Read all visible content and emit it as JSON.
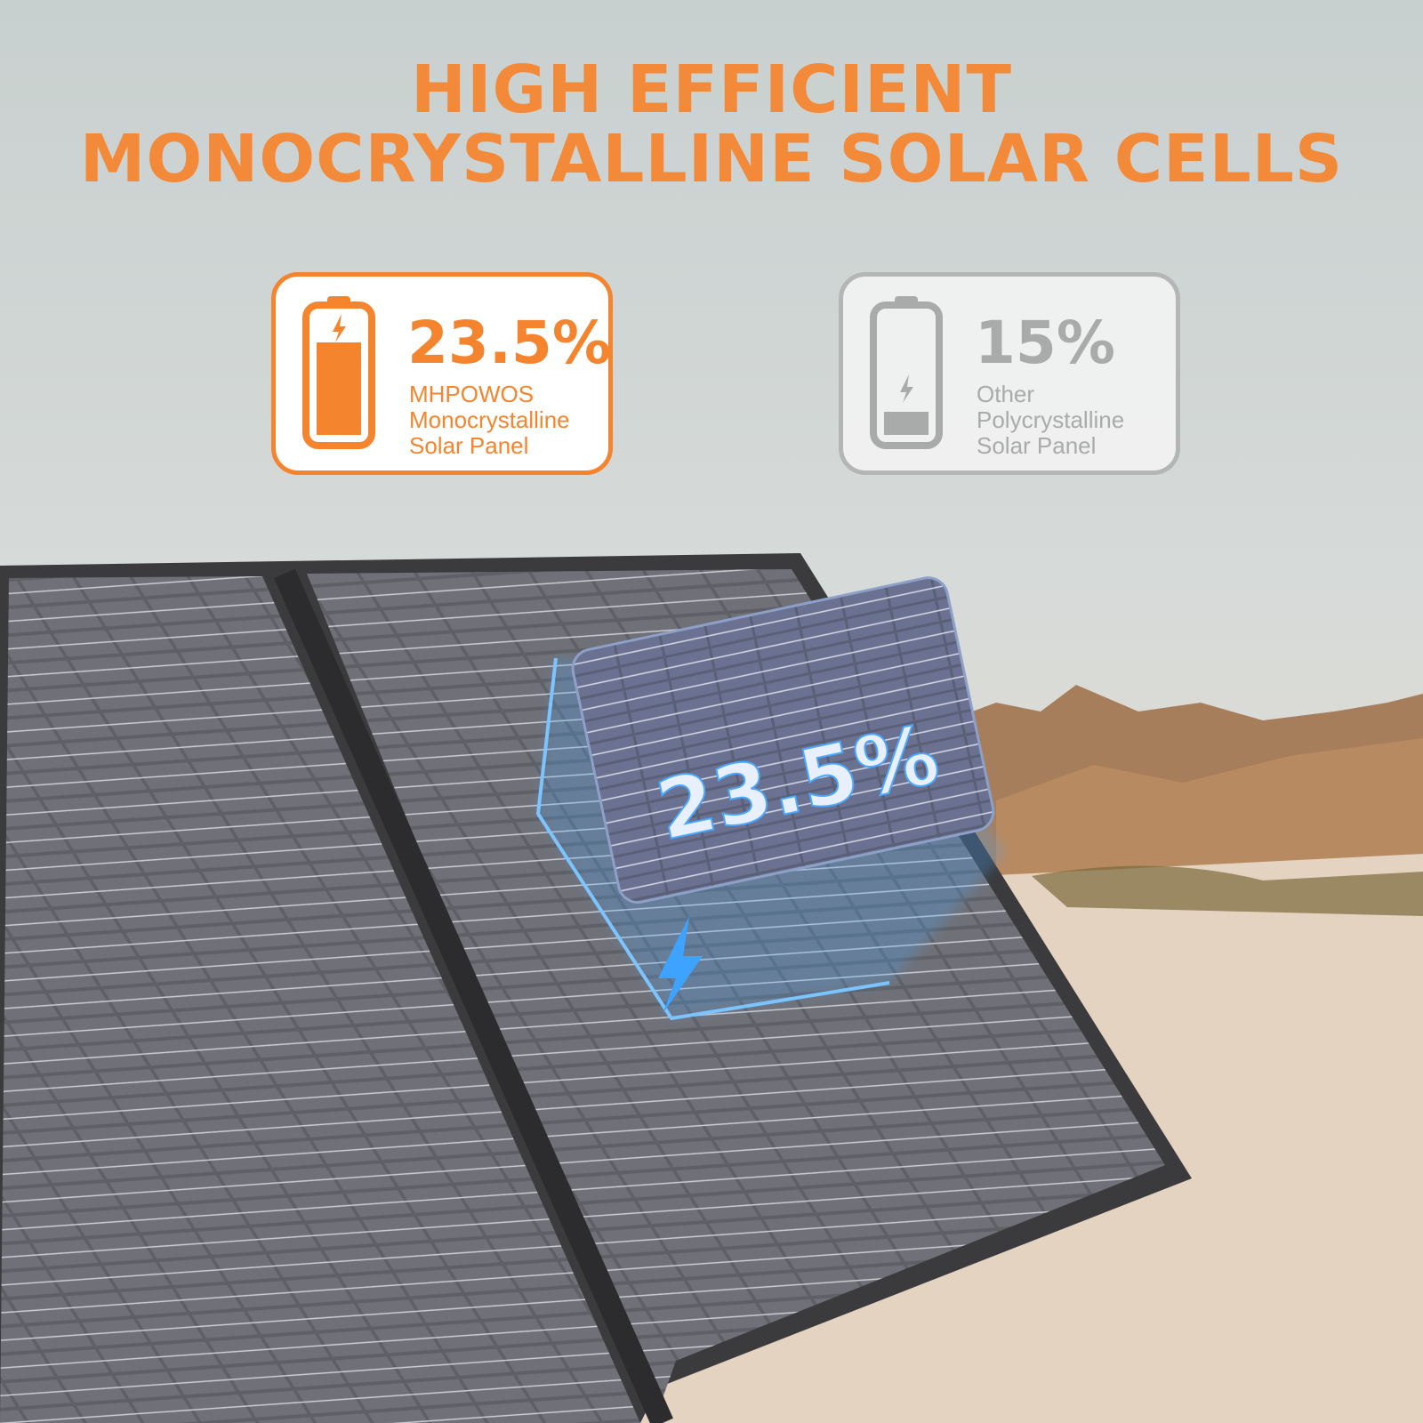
{
  "headline": {
    "line1": "HIGH EFFICIENT",
    "line2": "MONOCRYSTALLINE SOLAR CELLS"
  },
  "comparison": [
    {
      "value": "23.5%",
      "brand": "MHPOWOS",
      "type": "Monocrystalline",
      "product": "Solar Panel",
      "battery_fill_percent": 75,
      "color": "#f5842f",
      "icon": "battery-charging-icon"
    },
    {
      "value": "15%",
      "brand": "Other",
      "type": "Polycrystalline",
      "product": "Solar Panel",
      "battery_fill_percent": 20,
      "color": "#a9abab",
      "icon": "battery-low-icon"
    }
  ],
  "floating_cell": {
    "label": "23.5%",
    "icon": "lightning-bolt-icon"
  },
  "colors": {
    "accent": "#f28a3a",
    "neutral": "#a9abab",
    "glow": "#4aa8ff"
  }
}
